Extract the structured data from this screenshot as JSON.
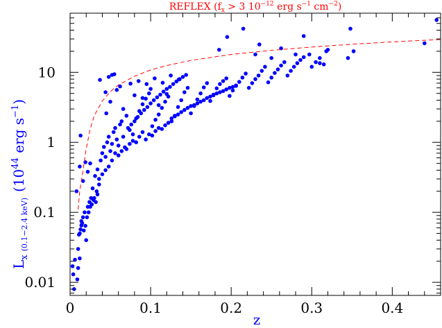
{
  "chart_data": {
    "type": "scatter",
    "title": {
      "prefix": "REFLEX (f",
      "sub": "x",
      "mid": " > 3 10",
      "sup1": "−12",
      "mid2": " erg s",
      "sup2": "−1",
      "mid3": " cm",
      "sup3": "−2",
      "suffix": ")"
    },
    "xlabel": "z",
    "ylabel": {
      "main": "L",
      "sub": "x",
      "band": "(0.1−2.4 keV)",
      "units_open": "(10",
      "units_exp": "44",
      "units_mid": " erg s",
      "units_exp2": "−1",
      "units_close": ")"
    },
    "x_ticks": [
      "0",
      "0.1",
      "0.2",
      "0.3",
      "0.4"
    ],
    "x_tick_values": [
      0,
      0.1,
      0.2,
      0.3,
      0.4
    ],
    "y_ticks": [
      "0.01",
      "0.1",
      "1",
      "10"
    ],
    "y_tick_values": [
      0.01,
      0.1,
      1,
      10
    ],
    "xlim": [
      0,
      0.46
    ],
    "ylim": [
      0.0065,
      70
    ],
    "y_scale": "log",
    "colors": {
      "points": "#0000ff",
      "curve": "#ff0000",
      "title": "#ff0000",
      "axis_label": "#0000ff"
    },
    "series": [
      {
        "type": "scatter",
        "points": [
          [
            0.005,
            0.008
          ],
          [
            0.004,
            0.013
          ],
          [
            0.003,
            0.017
          ],
          [
            0.006,
            0.021
          ],
          [
            0.009,
            0.011
          ],
          [
            0.01,
            0.016
          ],
          [
            0.012,
            0.022
          ],
          [
            0.011,
            0.048
          ],
          [
            0.013,
            0.057
          ],
          [
            0.014,
            0.065
          ],
          [
            0.015,
            0.07
          ],
          [
            0.017,
            0.055
          ],
          [
            0.019,
            0.064
          ],
          [
            0.02,
            0.04
          ],
          [
            0.021,
            0.085
          ],
          [
            0.023,
            0.1
          ],
          [
            0.024,
            0.14
          ],
          [
            0.025,
            0.12
          ],
          [
            0.027,
            0.13
          ],
          [
            0.029,
            0.15
          ],
          [
            0.03,
            0.16
          ],
          [
            0.032,
            0.14
          ],
          [
            0.034,
            0.18
          ],
          [
            0.008,
            0.2
          ],
          [
            0.012,
            0.45
          ],
          [
            0.013,
            1.25
          ],
          [
            0.016,
            0.28
          ],
          [
            0.019,
            0.52
          ],
          [
            0.022,
            0.38
          ],
          [
            0.025,
            0.5
          ],
          [
            0.028,
            0.22
          ],
          [
            0.031,
            0.33
          ],
          [
            0.034,
            0.41
          ],
          [
            0.036,
            0.3
          ],
          [
            0.038,
            0.55
          ],
          [
            0.04,
            0.7
          ],
          [
            0.042,
            0.86
          ],
          [
            0.044,
            0.62
          ],
          [
            0.046,
            1.0
          ],
          [
            0.048,
            1.2
          ],
          [
            0.05,
            0.75
          ],
          [
            0.052,
            0.95
          ],
          [
            0.054,
            1.4
          ],
          [
            0.056,
            1.6
          ],
          [
            0.058,
            1.1
          ],
          [
            0.06,
            0.9
          ],
          [
            0.062,
            1.8
          ],
          [
            0.064,
            2.0
          ],
          [
            0.037,
            7.8
          ],
          [
            0.044,
            5.2
          ],
          [
            0.048,
            8.6
          ],
          [
            0.052,
            9.2
          ],
          [
            0.055,
            9.4
          ],
          [
            0.05,
            3.8
          ],
          [
            0.045,
            2.6
          ],
          [
            0.058,
            5.6
          ],
          [
            0.062,
            6.3
          ],
          [
            0.066,
            3.0
          ],
          [
            0.07,
            2.4
          ],
          [
            0.074,
            1.5
          ],
          [
            0.078,
            1.3
          ],
          [
            0.082,
            2.2
          ],
          [
            0.086,
            2.8
          ],
          [
            0.09,
            3.5
          ],
          [
            0.094,
            4.2
          ],
          [
            0.098,
            5.0
          ],
          [
            0.102,
            1.7
          ],
          [
            0.106,
            2.1
          ],
          [
            0.11,
            2.5
          ],
          [
            0.114,
            3.1
          ],
          [
            0.118,
            3.8
          ],
          [
            0.122,
            4.5
          ],
          [
            0.126,
            2.0
          ],
          [
            0.13,
            2.4
          ],
          [
            0.134,
            3.2
          ],
          [
            0.138,
            4.0
          ],
          [
            0.142,
            5.2
          ],
          [
            0.146,
            6.0
          ],
          [
            0.15,
            2.6
          ],
          [
            0.154,
            3.3
          ],
          [
            0.158,
            4.1
          ],
          [
            0.162,
            5.0
          ],
          [
            0.166,
            6.1
          ],
          [
            0.17,
            7.0
          ],
          [
            0.174,
            3.9
          ],
          [
            0.178,
            4.8
          ],
          [
            0.182,
            5.9
          ],
          [
            0.186,
            6.8
          ],
          [
            0.19,
            7.5
          ],
          [
            0.194,
            8.2
          ],
          [
            0.198,
            4.6
          ],
          [
            0.202,
            5.5
          ],
          [
            0.206,
            6.4
          ],
          [
            0.21,
            7.3
          ],
          [
            0.214,
            8.4
          ],
          [
            0.218,
            9.6
          ],
          [
            0.222,
            6.0
          ],
          [
            0.226,
            7.0
          ],
          [
            0.23,
            8.0
          ],
          [
            0.234,
            9.0
          ],
          [
            0.238,
            10.5
          ],
          [
            0.242,
            12.0
          ],
          [
            0.246,
            7.2
          ],
          [
            0.25,
            8.4
          ],
          [
            0.254,
            9.8
          ],
          [
            0.258,
            11.0
          ],
          [
            0.262,
            12.5
          ],
          [
            0.266,
            14.0
          ],
          [
            0.27,
            9.0
          ],
          [
            0.274,
            10.5
          ],
          [
            0.278,
            12.0
          ],
          [
            0.282,
            13.5
          ],
          [
            0.286,
            15.0
          ],
          [
            0.29,
            16.5
          ],
          [
            0.3,
            12.0
          ],
          [
            0.305,
            14.0
          ],
          [
            0.31,
            16.0
          ],
          [
            0.315,
            13.0
          ],
          [
            0.318,
            20.0
          ],
          [
            0.32,
            21.0
          ],
          [
            0.185,
            21.0
          ],
          [
            0.215,
            42.0
          ],
          [
            0.23,
            18.0
          ],
          [
            0.235,
            25.0
          ],
          [
            0.25,
            16.0
          ],
          [
            0.262,
            22.0
          ],
          [
            0.29,
            33.0
          ],
          [
            0.297,
            18.0
          ],
          [
            0.345,
            16.0
          ],
          [
            0.348,
            42.0
          ],
          [
            0.352,
            20.0
          ],
          [
            0.44,
            26.0
          ],
          [
            0.455,
            56.0
          ],
          [
            0.31,
            13.5
          ],
          [
            0.28,
            18.0
          ],
          [
            0.195,
            32.0
          ],
          [
            0.066,
            1.2
          ],
          [
            0.07,
            0.8
          ],
          [
            0.074,
            0.95
          ],
          [
            0.078,
            1.05
          ],
          [
            0.082,
            1.0
          ],
          [
            0.086,
            1.2
          ],
          [
            0.09,
            1.4
          ],
          [
            0.094,
            1.1
          ],
          [
            0.098,
            1.3
          ],
          [
            0.102,
            1.25
          ],
          [
            0.106,
            1.45
          ],
          [
            0.11,
            1.6
          ],
          [
            0.114,
            1.55
          ],
          [
            0.118,
            1.75
          ],
          [
            0.122,
            1.9
          ],
          [
            0.126,
            2.2
          ],
          [
            0.13,
            2.35
          ],
          [
            0.134,
            2.5
          ],
          [
            0.138,
            2.7
          ],
          [
            0.142,
            2.9
          ],
          [
            0.146,
            3.1
          ],
          [
            0.15,
            3.3
          ],
          [
            0.154,
            3.4
          ],
          [
            0.158,
            3.6
          ],
          [
            0.162,
            3.8
          ],
          [
            0.166,
            4.0
          ],
          [
            0.17,
            4.3
          ],
          [
            0.174,
            4.5
          ],
          [
            0.178,
            4.7
          ],
          [
            0.182,
            5.0
          ],
          [
            0.186,
            5.2
          ],
          [
            0.19,
            5.4
          ],
          [
            0.194,
            5.7
          ],
          [
            0.198,
            6.0
          ],
          [
            0.202,
            6.2
          ],
          [
            0.206,
            6.5
          ],
          [
            0.06,
            0.65
          ],
          [
            0.064,
            0.75
          ],
          [
            0.068,
            0.85
          ],
          [
            0.072,
            1.6
          ],
          [
            0.076,
            1.8
          ],
          [
            0.08,
            2.0
          ],
          [
            0.084,
            2.3
          ],
          [
            0.088,
            2.6
          ],
          [
            0.092,
            2.9
          ],
          [
            0.096,
            3.2
          ],
          [
            0.1,
            3.6
          ],
          [
            0.104,
            4.0
          ],
          [
            0.108,
            4.4
          ],
          [
            0.112,
            4.8
          ],
          [
            0.116,
            5.3
          ],
          [
            0.12,
            5.8
          ],
          [
            0.124,
            6.2
          ],
          [
            0.128,
            6.8
          ],
          [
            0.132,
            7.4
          ],
          [
            0.136,
            8.0
          ],
          [
            0.14,
            8.6
          ],
          [
            0.144,
            9.2
          ],
          [
            0.056,
            0.7
          ],
          [
            0.052,
            0.55
          ],
          [
            0.048,
            0.45
          ],
          [
            0.044,
            0.4
          ],
          [
            0.04,
            0.35
          ],
          [
            0.036,
            0.25
          ],
          [
            0.033,
            0.2
          ],
          [
            0.026,
            0.16
          ],
          [
            0.022,
            0.12
          ],
          [
            0.018,
            0.1
          ],
          [
            0.016,
            0.085
          ],
          [
            0.014,
            0.075
          ],
          [
            0.012,
            0.05
          ],
          [
            0.01,
            0.03
          ],
          [
            0.085,
            7.5
          ],
          [
            0.095,
            6.8
          ],
          [
            0.105,
            8.2
          ],
          [
            0.115,
            7.1
          ],
          [
            0.125,
            9.0
          ],
          [
            0.135,
            7.9
          ],
          [
            0.075,
            6.9
          ],
          [
            0.08,
            4.7
          ],
          [
            0.09,
            4.3
          ],
          [
            0.1,
            5.8
          ],
          [
            0.11,
            3.4
          ],
          [
            0.12,
            4.9
          ]
        ]
      },
      {
        "type": "line",
        "style": "dashed",
        "note": "flux limit curve",
        "points": [
          [
            0.01,
            0.11
          ],
          [
            0.012,
            0.2
          ],
          [
            0.015,
            0.33
          ],
          [
            0.02,
            0.8
          ],
          [
            0.025,
            1.55
          ],
          [
            0.03,
            2.4
          ],
          [
            0.04,
            3.9
          ],
          [
            0.05,
            5.3
          ],
          [
            0.06,
            6.6
          ],
          [
            0.08,
            8.8
          ],
          [
            0.1,
            10.8
          ],
          [
            0.12,
            12.5
          ],
          [
            0.15,
            14.8
          ],
          [
            0.2,
            18.0
          ],
          [
            0.25,
            20.6
          ],
          [
            0.3,
            23.0
          ],
          [
            0.35,
            25.2
          ],
          [
            0.4,
            27.2
          ],
          [
            0.46,
            29.5
          ]
        ]
      }
    ]
  }
}
